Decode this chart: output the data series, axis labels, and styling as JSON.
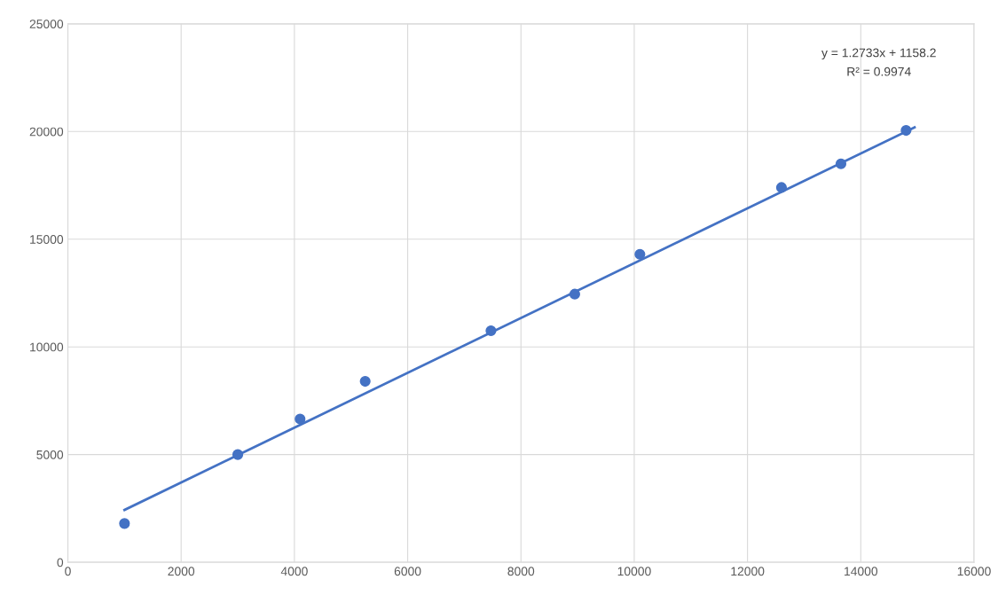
{
  "chart_data": {
    "type": "scatter",
    "xlim": [
      0,
      16000
    ],
    "ylim": [
      0,
      25000
    ],
    "xticks": [
      0,
      2000,
      4000,
      6000,
      8000,
      10000,
      12000,
      14000,
      16000
    ],
    "yticks": [
      0,
      5000,
      10000,
      15000,
      20000,
      25000
    ],
    "grid": true,
    "marker": "circle",
    "series": [
      {
        "color": "#4472c4",
        "x": [
          1000,
          3000,
          4100,
          5250,
          7470,
          8950,
          10100,
          12600,
          13650,
          14800
        ],
        "values": [
          1800,
          5000,
          6650,
          8400,
          10750,
          12450,
          14300,
          17400,
          18500,
          20050
        ]
      },
      {
        "type": "line",
        "color": "#4472c4",
        "marker": "none",
        "x": [
          1000,
          14950
        ],
        "values": [
          2430,
          20190
        ]
      }
    ],
    "annotations": [
      "y = 1.2733x + 1158.2",
      "R² = 0.9974"
    ]
  }
}
